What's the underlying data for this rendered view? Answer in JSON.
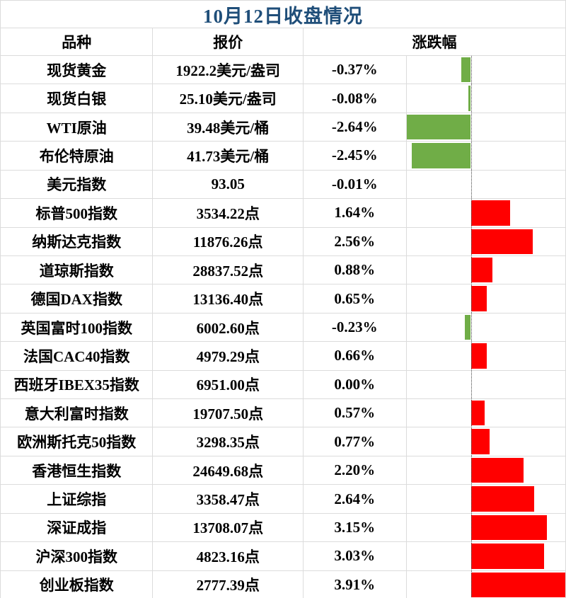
{
  "title": "10月12日收盘情况",
  "columns": {
    "name": "品种",
    "quote": "报价",
    "change": "涨跌幅"
  },
  "colors": {
    "title": "#1F4E79",
    "up": "#FF0000",
    "down": "#70AD47",
    "gridline": "#DCDCDC",
    "axis": "#404040"
  },
  "rows": [
    {
      "name": "现货黄金",
      "quote": "1922.2美元/盎司",
      "change": "-0.37%",
      "pct": -0.37
    },
    {
      "name": "现货白银",
      "quote": "25.10美元/盎司",
      "change": "-0.08%",
      "pct": -0.08
    },
    {
      "name": "WTI原油",
      "quote": "39.48美元/桶",
      "change": "-2.64%",
      "pct": -2.64
    },
    {
      "name": "布伦特原油",
      "quote": "41.73美元/桶",
      "change": "-2.45%",
      "pct": -2.45
    },
    {
      "name": "美元指数",
      "quote": "93.05",
      "change": "-0.01%",
      "pct": -0.01
    },
    {
      "name": "标普500指数",
      "quote": "3534.22点",
      "change": "1.64%",
      "pct": 1.64
    },
    {
      "name": "纳斯达克指数",
      "quote": "11876.26点",
      "change": "2.56%",
      "pct": 2.56
    },
    {
      "name": "道琼斯指数",
      "quote": "28837.52点",
      "change": "0.88%",
      "pct": 0.88
    },
    {
      "name": "德国DAX指数",
      "quote": "13136.40点",
      "change": "0.65%",
      "pct": 0.65
    },
    {
      "name": "英国富时100指数",
      "quote": "6002.60点",
      "change": "-0.23%",
      "pct": -0.23
    },
    {
      "name": "法国CAC40指数",
      "quote": "4979.29点",
      "change": "0.66%",
      "pct": 0.66
    },
    {
      "name": "西班牙IBEX35指数",
      "quote": "6951.00点",
      "change": "0.00%",
      "pct": 0.0
    },
    {
      "name": "意大利富时指数",
      "quote": "19707.50点",
      "change": "0.57%",
      "pct": 0.57
    },
    {
      "name": "欧洲斯托克50指数",
      "quote": "3298.35点",
      "change": "0.77%",
      "pct": 0.77
    },
    {
      "name": "香港恒生指数",
      "quote": "24649.68点",
      "change": "2.20%",
      "pct": 2.2
    },
    {
      "name": "上证综指",
      "quote": "3358.47点",
      "change": "2.64%",
      "pct": 2.64
    },
    {
      "name": "深证成指",
      "quote": "13708.07点",
      "change": "3.15%",
      "pct": 3.15
    },
    {
      "name": "沪深300指数",
      "quote": "4823.16点",
      "change": "3.03%",
      "pct": 3.03
    },
    {
      "name": "创业板指数",
      "quote": "2777.39点",
      "change": "3.91%",
      "pct": 3.91
    }
  ],
  "chart_data": {
    "type": "bar",
    "title": "10月12日收盘情况",
    "categories": [
      "现货黄金",
      "现货白银",
      "WTI原油",
      "布伦特原油",
      "美元指数",
      "标普500指数",
      "纳斯达克指数",
      "道琼斯指数",
      "德国DAX指数",
      "英国富时100指数",
      "法国CAC40指数",
      "西班牙IBEX35指数",
      "意大利富时指数",
      "欧洲斯托克50指数",
      "香港恒生指数",
      "上证综指",
      "深证成指",
      "沪深300指数",
      "创业板指数"
    ],
    "values": [
      -0.37,
      -0.08,
      -2.64,
      -2.45,
      -0.01,
      1.64,
      2.56,
      0.88,
      0.65,
      -0.23,
      0.66,
      0.0,
      0.57,
      0.77,
      2.2,
      2.64,
      3.15,
      3.03,
      3.91
    ],
    "quotes": [
      "1922.2美元/盎司",
      "25.10美元/盎司",
      "39.48美元/桶",
      "41.73美元/桶",
      "93.05",
      "3534.22点",
      "11876.26点",
      "28837.52点",
      "13136.40点",
      "6002.60点",
      "4979.29点",
      "6951.00点",
      "19707.50点",
      "3298.35点",
      "24649.68点",
      "3358.47点",
      "13708.07点",
      "4823.16点",
      "2777.39点"
    ],
    "xlabel": "涨跌幅",
    "ylabel": "品种",
    "xlim": [
      -2.66,
      3.94
    ],
    "orientation": "horizontal",
    "grid": false,
    "bar_colors": {
      "positive": "#FF0000",
      "negative": "#70AD47"
    }
  }
}
